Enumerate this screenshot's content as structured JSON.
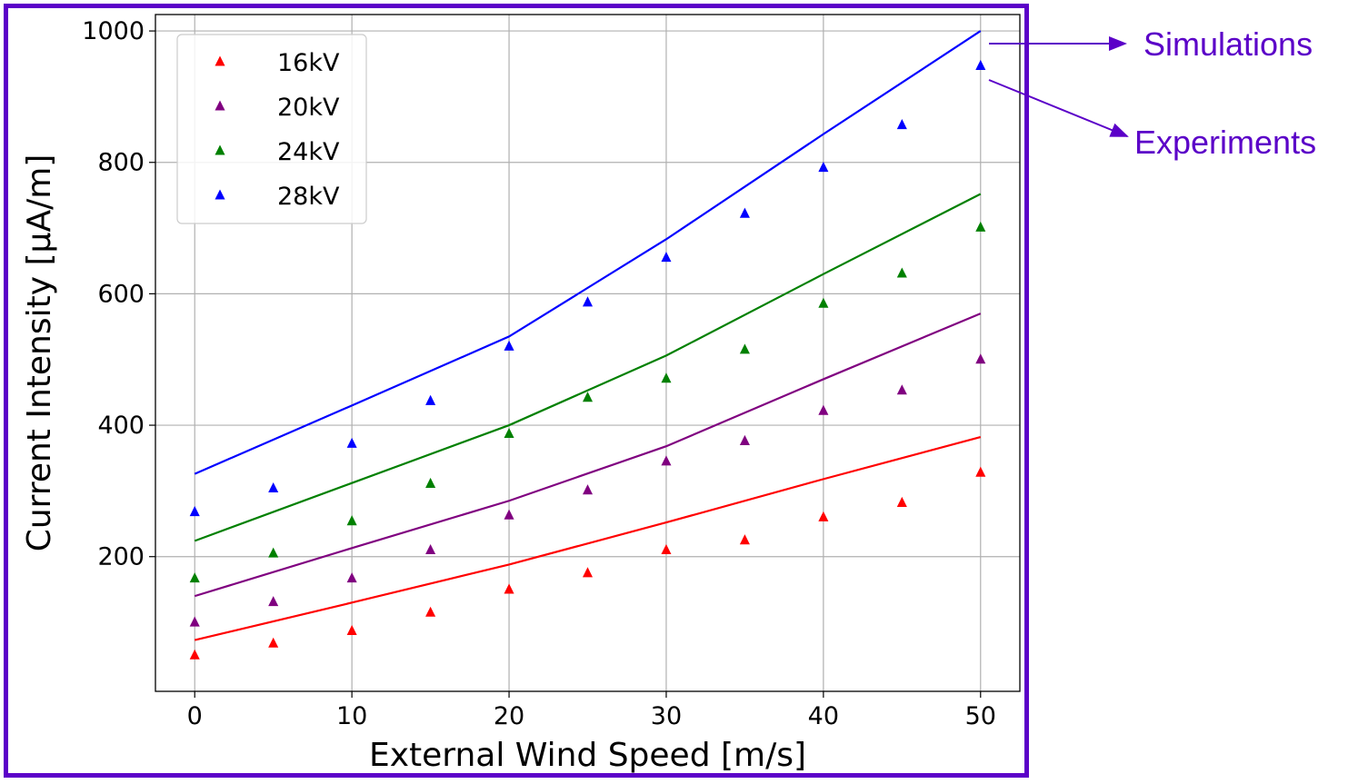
{
  "chart_data": {
    "type": "scatter",
    "xlabel": "External Wind Speed [m/s]",
    "ylabel": "Current Intensity [μA/m]",
    "xlim": [
      -2.5,
      52.5
    ],
    "ylim": [
      -5,
      1025
    ],
    "xticks": [
      0,
      10,
      20,
      30,
      40,
      50
    ],
    "yticks": [
      200,
      400,
      600,
      800,
      1000
    ],
    "grid": true,
    "legend_position": "top-left",
    "simulations": [
      {
        "name": "16kV",
        "color": "#ff0000",
        "x": [
          0,
          10,
          20,
          30,
          40,
          50
        ],
        "y": [
          73,
          130,
          188,
          252,
          318,
          382
        ]
      },
      {
        "name": "20kV",
        "color": "#800080",
        "x": [
          0,
          10,
          20,
          30,
          40,
          50
        ],
        "y": [
          140,
          213,
          285,
          368,
          470,
          570
        ]
      },
      {
        "name": "24kV",
        "color": "#008000",
        "x": [
          0,
          10,
          20,
          30,
          40,
          50
        ],
        "y": [
          224,
          312,
          400,
          506,
          630,
          752
        ]
      },
      {
        "name": "28kV",
        "color": "#0000ff",
        "x": [
          0,
          10,
          20,
          30,
          40,
          50
        ],
        "y": [
          326,
          430,
          535,
          683,
          843,
          1000
        ]
      }
    ],
    "experiments": [
      {
        "name": "16kV",
        "color": "#ff0000",
        "x": [
          0,
          5,
          10,
          15,
          20,
          25,
          30,
          35,
          40,
          45,
          50
        ],
        "y": [
          50,
          68,
          87,
          115,
          150,
          175,
          210,
          225,
          260,
          282,
          328
        ]
      },
      {
        "name": "20kV",
        "color": "#800080",
        "x": [
          0,
          5,
          10,
          15,
          20,
          25,
          30,
          35,
          40,
          45,
          50
        ],
        "y": [
          100,
          131,
          167,
          210,
          263,
          301,
          345,
          376,
          422,
          453,
          500
        ]
      },
      {
        "name": "24kV",
        "color": "#008000",
        "x": [
          0,
          5,
          10,
          15,
          20,
          25,
          30,
          35,
          40,
          45,
          50
        ],
        "y": [
          167,
          205,
          254,
          311,
          387,
          442,
          471,
          515,
          585,
          631,
          701
        ]
      },
      {
        "name": "28kV",
        "color": "#0000ff",
        "x": [
          0,
          5,
          10,
          15,
          20,
          25,
          30,
          35,
          40,
          45,
          50
        ],
        "y": [
          268,
          304,
          372,
          437,
          520,
          587,
          655,
          722,
          792,
          857,
          947
        ]
      }
    ]
  },
  "annotations": {
    "simulations_label": "Simulations",
    "experiments_label": "Experiments",
    "color": "#5b00c8"
  }
}
